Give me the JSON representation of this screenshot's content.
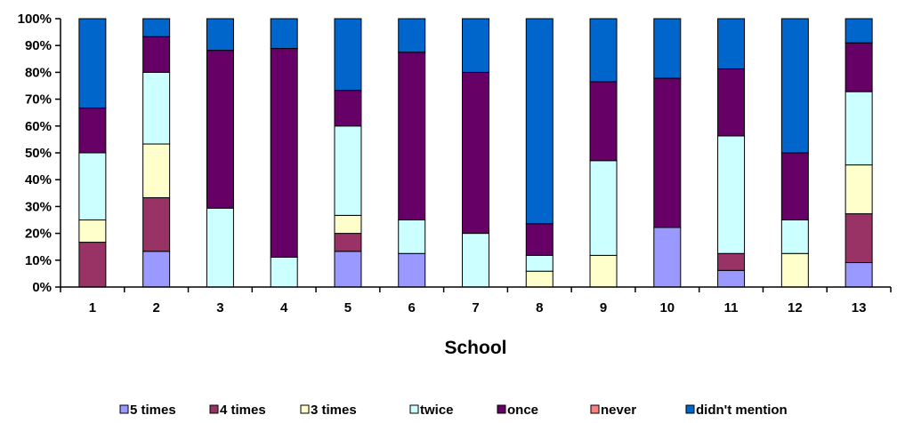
{
  "chart_data": {
    "type": "bar",
    "stacked": true,
    "percent_stacked": true,
    "xlabel": "School",
    "ylabel": "",
    "ylim": [
      0,
      100
    ],
    "y_ticks": [
      "0%",
      "10%",
      "20%",
      "30%",
      "40%",
      "50%",
      "60%",
      "70%",
      "80%",
      "90%",
      "100%"
    ],
    "categories": [
      "1",
      "2",
      "3",
      "4",
      "5",
      "6",
      "7",
      "8",
      "9",
      "10",
      "11",
      "12",
      "13"
    ],
    "grid": false,
    "legend_position": "bottom",
    "series": [
      {
        "name": "5 times",
        "color": "#9999ff",
        "values": [
          0,
          13.3,
          0,
          0,
          13.3,
          12.5,
          0,
          0,
          0,
          22.2,
          6.2,
          0,
          9.1
        ]
      },
      {
        "name": "4 times",
        "color": "#993366",
        "values": [
          16.7,
          20,
          0,
          0,
          6.7,
          0,
          0,
          0,
          0,
          0,
          6.3,
          0,
          18.2
        ]
      },
      {
        "name": "3 times",
        "color": "#ffffcc",
        "values": [
          8.3,
          20,
          0,
          0,
          6.7,
          0,
          0,
          5.9,
          11.8,
          0,
          0,
          12.5,
          18.2
        ]
      },
      {
        "name": "twice",
        "color": "#ccffff",
        "values": [
          25,
          26.7,
          29.4,
          11.1,
          33.3,
          12.5,
          20,
          5.9,
          35.3,
          0,
          43.8,
          12.5,
          27.3
        ]
      },
      {
        "name": "once",
        "color": "#660066",
        "values": [
          16.7,
          13.3,
          58.8,
          77.8,
          13.3,
          62.5,
          60,
          11.8,
          29.4,
          55.6,
          25,
          25,
          18.2
        ]
      },
      {
        "name": "never",
        "color": "#ff8080",
        "values": [
          0,
          0,
          0,
          0,
          0,
          0,
          0,
          0,
          0,
          0,
          0,
          0,
          0
        ]
      },
      {
        "name": "didn't mention",
        "color": "#0066cc",
        "values": [
          33.3,
          6.7,
          11.8,
          11.1,
          26.7,
          12.5,
          20,
          76.4,
          23.5,
          22.2,
          18.7,
          50,
          9.0
        ]
      }
    ]
  }
}
